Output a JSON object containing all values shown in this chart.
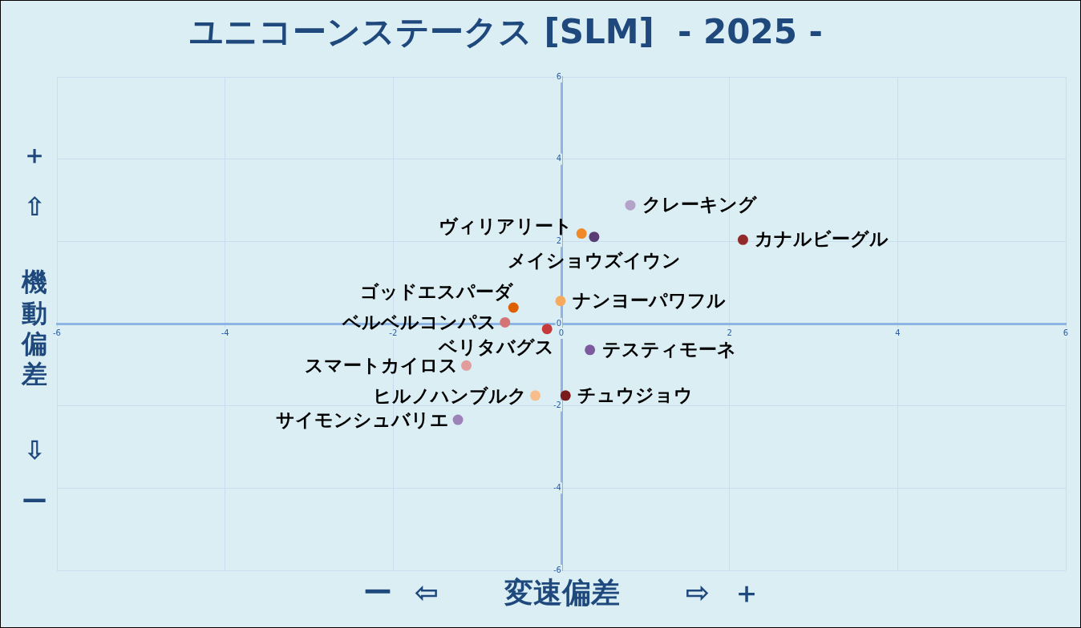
{
  "chart_data": {
    "type": "scatter",
    "title": "ユニコーンステークス [SLM]  - 2025 -",
    "xlabel": "ー ⇦ 変速偏差 ⇨ ＋",
    "ylabel": "＋ ⇧ 機動偏差 ⇩ ー",
    "xlim": [
      -6,
      6
    ],
    "ylim": [
      -6,
      6
    ],
    "xticks": [
      -6,
      -4,
      -2,
      0,
      2,
      4,
      6
    ],
    "yticks": [
      -6,
      -4,
      -2,
      0,
      2,
      4,
      6
    ],
    "grid": true,
    "marker": "circle",
    "series": [
      {
        "name": "クレーキング",
        "color": "#b4a3c9",
        "x": [
          0.82
        ],
        "values": [
          2.88
        ]
      },
      {
        "name": "ヴィリアリート",
        "color": "#f08a28",
        "x": [
          0.24
        ],
        "values": [
          2.19
        ]
      },
      {
        "name": "メイショウズイウン",
        "color": "#5a3d75",
        "x": [
          0.39
        ],
        "values": [
          2.11
        ]
      },
      {
        "name": "カナルビーグル",
        "color": "#922a2a",
        "x": [
          2.16
        ],
        "values": [
          2.04
        ]
      },
      {
        "name": "ゴッドエスパーダ",
        "color": "#de6004",
        "x": [
          -0.57
        ],
        "values": [
          0.39
        ]
      },
      {
        "name": "ナンヨーパワフル",
        "color": "#f7a95c",
        "x": [
          -0.01
        ],
        "values": [
          0.55
        ]
      },
      {
        "name": "ベルベルコンパス",
        "color": "#d47474",
        "x": [
          -0.67
        ],
        "values": [
          0.03
        ]
      },
      {
        "name": "ベリタバグス",
        "color": "#c63a3a",
        "x": [
          -0.17
        ],
        "values": [
          -0.13
        ]
      },
      {
        "name": "テスティモーネ",
        "color": "#7d5a9e",
        "x": [
          0.34
        ],
        "values": [
          -0.64
        ]
      },
      {
        "name": "スマートカイロス",
        "color": "#e29c9c",
        "x": [
          -1.13
        ],
        "values": [
          -1.02
        ]
      },
      {
        "name": "ヒルノハンブルク",
        "color": "#f8bd8a",
        "x": [
          -0.31
        ],
        "values": [
          -1.75
        ]
      },
      {
        "name": "チュウジョウ",
        "color": "#7a1a1a",
        "x": [
          0.05
        ],
        "values": [
          -1.75
        ]
      },
      {
        "name": "サイモンシュバリエ",
        "color": "#9d82b9",
        "x": [
          -1.23
        ],
        "values": [
          -2.34
        ]
      }
    ]
  }
}
